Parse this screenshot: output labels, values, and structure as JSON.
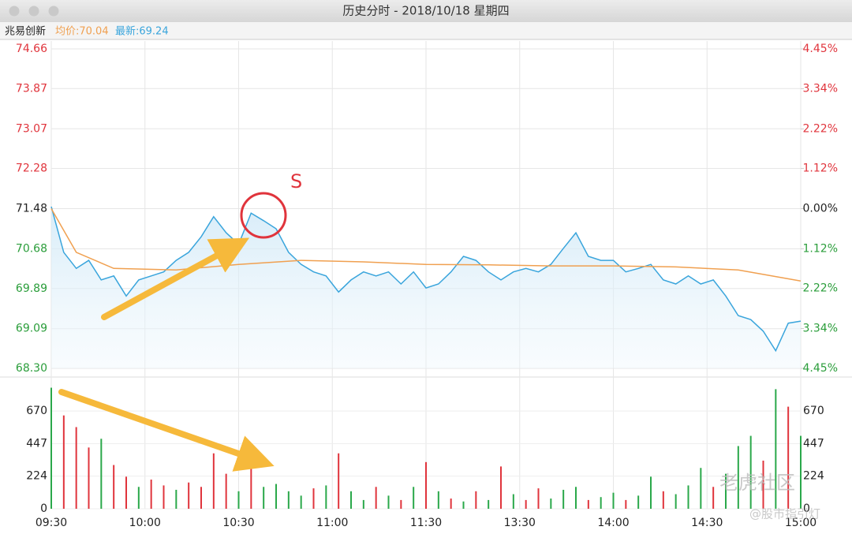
{
  "window": {
    "title": "历史分时 - 2018/10/18 星期四"
  },
  "header": {
    "name": "兆易创新",
    "avg_label": "均价:70.04",
    "last_label": "最新:69.24"
  },
  "watermark": [
    "老虎社区",
    "@股市指引灯"
  ],
  "chart_data": [
    {
      "type": "line",
      "annotation": "S",
      "xlim": [
        0,
        240
      ],
      "xticks": [
        {
          "value": 0,
          "label": "09:30"
        },
        {
          "value": 30,
          "label": "10:00"
        },
        {
          "value": 60,
          "label": "10:30"
        },
        {
          "value": 90,
          "label": "11:00"
        },
        {
          "value": 120,
          "label": "11:30"
        },
        {
          "value": 150,
          "label": "13:30"
        },
        {
          "value": 180,
          "label": "14:00"
        },
        {
          "value": 210,
          "label": "14:30"
        },
        {
          "value": 240,
          "label": "15:00"
        }
      ],
      "ylim": [
        68.3,
        74.66
      ],
      "yticks": [
        74.66,
        73.87,
        73.07,
        72.28,
        71.48,
        70.68,
        69.89,
        69.09,
        {
          "value": 68.3,
          "label": "68.30"
        }
      ],
      "y2lim": [
        -4.45,
        4.45
      ],
      "y2ticks": [
        {
          "value": 4.45,
          "label": "4.45%"
        },
        {
          "value": 3.34,
          "label": "3.34%"
        },
        {
          "value": 2.22,
          "label": "2.22%"
        },
        {
          "value": 1.12,
          "label": "1.12%"
        },
        {
          "value": 0,
          "label": "0.00%"
        },
        {
          "value": -1.12,
          "label": "1.12%"
        },
        {
          "value": -2.22,
          "label": "2.22%"
        },
        {
          "value": -3.34,
          "label": "3.34%"
        },
        {
          "value": -4.45,
          "label": "4.45%"
        }
      ],
      "grid": true,
      "series": [
        {
          "color": "#3aa5dc",
          "fill": true,
          "x": [
            0,
            4,
            8,
            12,
            16,
            20,
            24,
            28,
            32,
            36,
            40,
            44,
            48,
            52,
            56,
            60,
            64,
            68,
            72,
            76,
            80,
            84,
            88,
            92,
            96,
            100,
            104,
            108,
            112,
            116,
            120,
            124,
            128,
            132,
            136,
            140,
            144,
            148,
            152,
            156,
            160,
            164,
            168,
            172,
            176,
            180,
            184,
            188,
            192,
            196,
            200,
            204,
            208,
            212,
            216,
            220,
            224,
            228,
            232,
            236,
            240
          ],
          "values": [
            71.52,
            70.61,
            70.29,
            70.45,
            70.06,
            70.14,
            69.74,
            70.06,
            70.14,
            70.22,
            70.45,
            70.61,
            70.92,
            71.32,
            71.0,
            70.77,
            71.39,
            71.24,
            71.08,
            70.61,
            70.37,
            70.22,
            70.14,
            69.82,
            70.06,
            70.22,
            70.14,
            70.22,
            69.98,
            70.22,
            69.9,
            69.98,
            70.22,
            70.53,
            70.45,
            70.22,
            70.06,
            70.22,
            70.29,
            70.22,
            70.37,
            70.69,
            71.0,
            70.53,
            70.45,
            70.45,
            70.22,
            70.29,
            70.37,
            70.06,
            69.98,
            70.14,
            69.98,
            70.06,
            69.74,
            69.35,
            69.27,
            69.04,
            68.65,
            69.2,
            69.24
          ]
        },
        {
          "color": "#f0a050",
          "x": [
            0,
            8,
            20,
            40,
            60,
            80,
            100,
            120,
            140,
            160,
            180,
            200,
            220,
            240
          ],
          "values": [
            71.48,
            70.61,
            70.29,
            70.26,
            70.37,
            70.45,
            70.42,
            70.37,
            70.36,
            70.34,
            70.34,
            70.32,
            70.26,
            70.04
          ]
        }
      ]
    },
    {
      "type": "bar",
      "ylim": [
        0,
        860
      ],
      "yticks": [
        0,
        224,
        447,
        670
      ],
      "x": [
        0,
        4,
        8,
        12,
        16,
        20,
        24,
        28,
        32,
        36,
        40,
        44,
        48,
        52,
        56,
        60,
        64,
        68,
        72,
        76,
        80,
        84,
        88,
        92,
        96,
        100,
        104,
        108,
        112,
        116,
        120,
        124,
        128,
        132,
        136,
        140,
        144,
        148,
        152,
        156,
        160,
        164,
        168,
        172,
        176,
        180,
        184,
        188,
        192,
        196,
        200,
        204,
        208,
        212,
        216,
        220,
        224,
        228,
        232,
        236,
        240
      ],
      "values": [
        830,
        640,
        560,
        420,
        480,
        300,
        220,
        150,
        200,
        160,
        130,
        180,
        150,
        380,
        240,
        120,
        280,
        150,
        170,
        120,
        90,
        140,
        160,
        380,
        120,
        60,
        150,
        90,
        60,
        150,
        320,
        120,
        70,
        50,
        120,
        60,
        290,
        100,
        60,
        140,
        70,
        130,
        150,
        60,
        80,
        110,
        60,
        90,
        220,
        120,
        100,
        160,
        280,
        150,
        240,
        430,
        500,
        330,
        820,
        700,
        500
      ],
      "colors": [
        "#2aa84a",
        "#e0343c",
        "#e0343c",
        "#e0343c",
        "#2aa84a",
        "#e0343c",
        "#e0343c",
        "#2aa84a",
        "#e0343c",
        "#e0343c",
        "#2aa84a",
        "#e0343c",
        "#e0343c",
        "#e0343c",
        "#e0343c",
        "#2aa84a",
        "#e0343c",
        "#2aa84a",
        "#2aa84a",
        "#2aa84a",
        "#2aa84a",
        "#e0343c",
        "#2aa84a",
        "#e0343c",
        "#2aa84a",
        "#2aa84a",
        "#e0343c",
        "#2aa84a",
        "#e0343c",
        "#2aa84a",
        "#e0343c",
        "#2aa84a",
        "#e0343c",
        "#2aa84a",
        "#e0343c",
        "#2aa84a",
        "#e0343c",
        "#2aa84a",
        "#e0343c",
        "#e0343c",
        "#2aa84a",
        "#2aa84a",
        "#2aa84a",
        "#e0343c",
        "#2aa84a",
        "#2aa84a",
        "#e0343c",
        "#2aa84a",
        "#2aa84a",
        "#e0343c",
        "#2aa84a",
        "#2aa84a",
        "#2aa84a",
        "#e0343c",
        "#2aa84a",
        "#2aa84a",
        "#2aa84a",
        "#e0343c",
        "#2aa84a",
        "#e0343c",
        "#2aa84a"
      ]
    }
  ]
}
